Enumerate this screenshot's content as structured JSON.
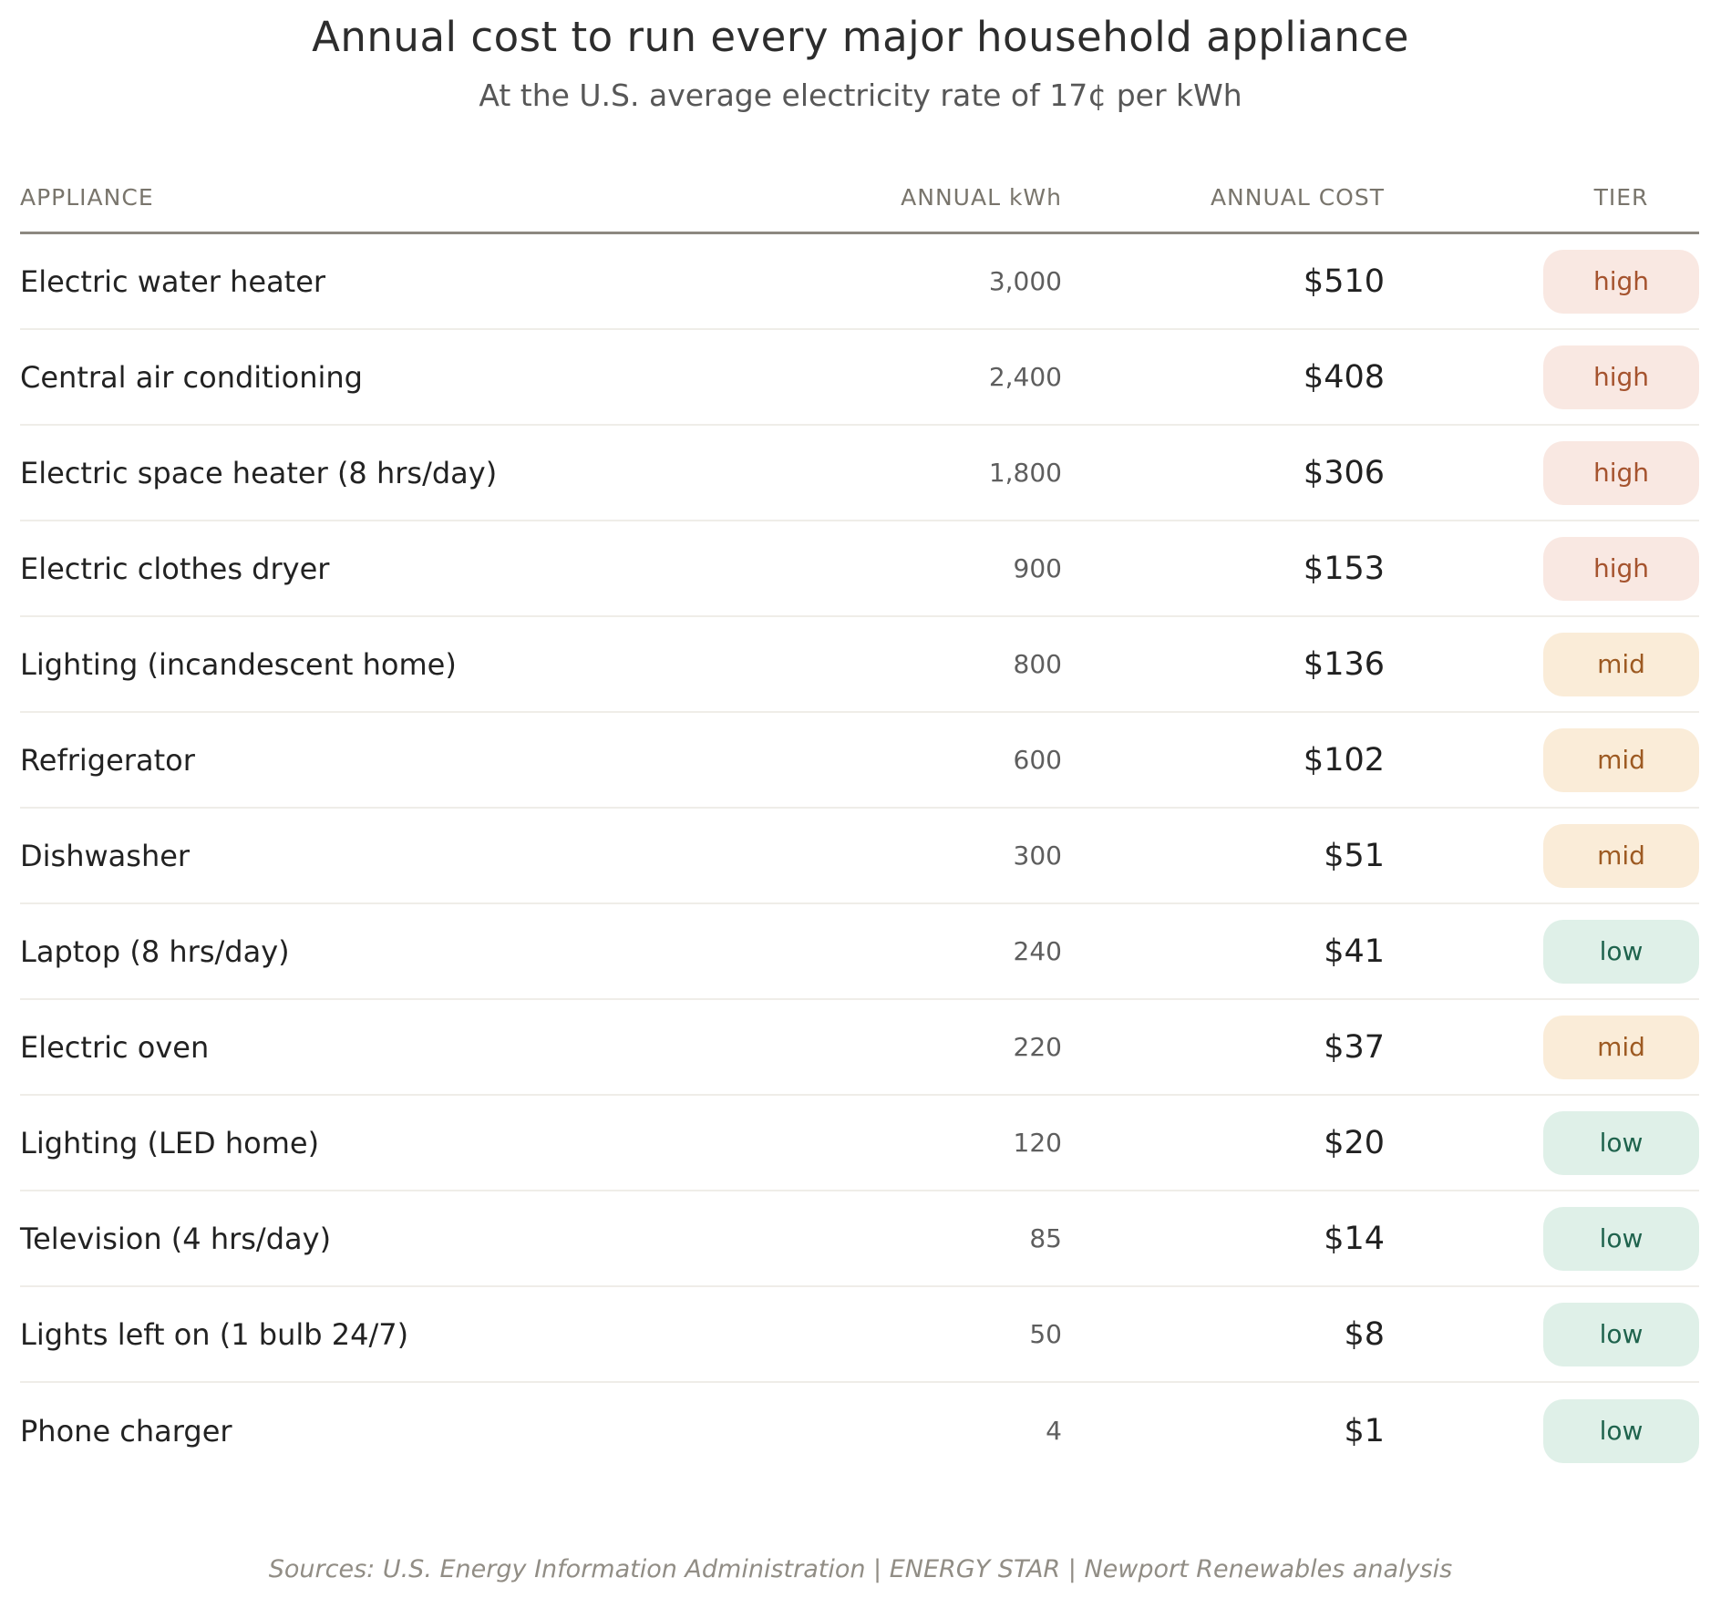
{
  "header": {
    "title": "Annual cost to run every major household appliance",
    "subtitle": "At the U.S. average electricity rate of 17¢ per kWh"
  },
  "table": {
    "columns": [
      "APPLIANCE",
      "ANNUAL kWh",
      "ANNUAL COST",
      "TIER"
    ],
    "rows": [
      {
        "appliance": "Electric water heater",
        "kwh": "3,000",
        "cost": "$510",
        "tier": "high"
      },
      {
        "appliance": "Central air conditioning",
        "kwh": "2,400",
        "cost": "$408",
        "tier": "high"
      },
      {
        "appliance": "Electric space heater (8 hrs/day)",
        "kwh": "1,800",
        "cost": "$306",
        "tier": "high"
      },
      {
        "appliance": "Electric clothes dryer",
        "kwh": "900",
        "cost": "$153",
        "tier": "high"
      },
      {
        "appliance": "Lighting (incandescent home)",
        "kwh": "800",
        "cost": "$136",
        "tier": "mid"
      },
      {
        "appliance": "Refrigerator",
        "kwh": "600",
        "cost": "$102",
        "tier": "mid"
      },
      {
        "appliance": "Dishwasher",
        "kwh": "300",
        "cost": "$51",
        "tier": "mid"
      },
      {
        "appliance": "Laptop (8 hrs/day)",
        "kwh": "240",
        "cost": "$41",
        "tier": "low"
      },
      {
        "appliance": "Electric oven",
        "kwh": "220",
        "cost": "$37",
        "tier": "mid"
      },
      {
        "appliance": "Lighting (LED home)",
        "kwh": "120",
        "cost": "$20",
        "tier": "low"
      },
      {
        "appliance": "Television (4 hrs/day)",
        "kwh": "85",
        "cost": "$14",
        "tier": "low"
      },
      {
        "appliance": "Lights left on (1 bulb 24/7)",
        "kwh": "50",
        "cost": "$8",
        "tier": "low"
      },
      {
        "appliance": "Phone charger",
        "kwh": "4",
        "cost": "$1",
        "tier": "low"
      }
    ]
  },
  "tiers": {
    "high": {
      "label": "high",
      "bg": "#f9e8e2",
      "text": "#a5532e"
    },
    "mid": {
      "label": "mid",
      "bg": "#faecd8",
      "text": "#9d5a22"
    },
    "low": {
      "label": "low",
      "bg": "#dff0e8",
      "text": "#1f634d"
    }
  },
  "footer": {
    "sources": "Sources: U.S. Energy Information Administration  |  ENERGY STAR  |  Newport Renewables analysis"
  },
  "chart_data": {
    "type": "table",
    "title": "Annual cost to run every major household appliance",
    "subtitle": "At the U.S. average electricity rate of 17¢ per kWh",
    "electricity_rate_cents_per_kwh": 17,
    "columns": [
      "APPLIANCE",
      "ANNUAL kWh",
      "ANNUAL COST",
      "TIER"
    ],
    "categories": [
      "Electric water heater",
      "Central air conditioning",
      "Electric space heater (8 hrs/day)",
      "Electric clothes dryer",
      "Lighting (incandescent home)",
      "Refrigerator",
      "Dishwasher",
      "Laptop (8 hrs/day)",
      "Electric oven",
      "Lighting (LED home)",
      "Television (4 hrs/day)",
      "Lights left on (1 bulb 24/7)",
      "Phone charger"
    ],
    "series": [
      {
        "name": "ANNUAL kWh",
        "values": [
          3000,
          2400,
          1800,
          900,
          800,
          600,
          300,
          240,
          220,
          120,
          85,
          50,
          4
        ]
      },
      {
        "name": "ANNUAL COST",
        "values": [
          510,
          408,
          306,
          153,
          136,
          102,
          51,
          41,
          37,
          20,
          14,
          8,
          1
        ]
      }
    ],
    "tiers": [
      "high",
      "high",
      "high",
      "high",
      "mid",
      "mid",
      "mid",
      "low",
      "mid",
      "low",
      "low",
      "low",
      "low"
    ],
    "legend_position": "none",
    "grid": "horizontal-row-separators"
  }
}
